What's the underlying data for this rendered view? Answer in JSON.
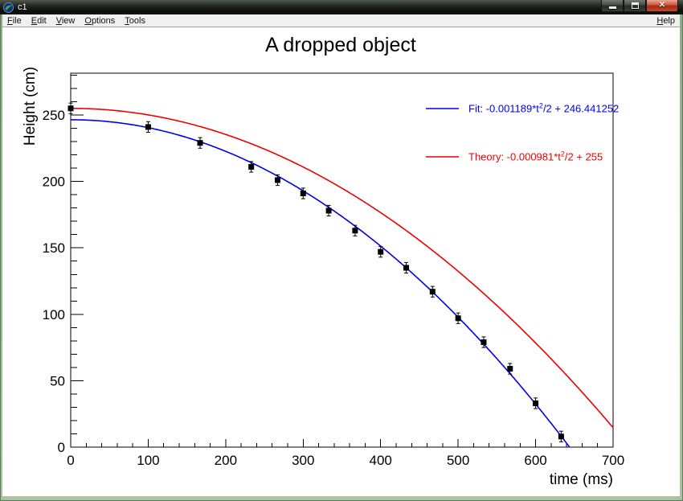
{
  "window": {
    "title": "c1",
    "buttons": {
      "minimize": "minimize",
      "maximize": "maximize",
      "close": "close"
    }
  },
  "menubar": {
    "items": [
      {
        "accel": "F",
        "rest": "ile"
      },
      {
        "accel": "E",
        "rest": "dit"
      },
      {
        "accel": "V",
        "rest": "iew"
      },
      {
        "accel": "O",
        "rest": "ptions"
      },
      {
        "accel": "T",
        "rest": "ools"
      }
    ],
    "help": {
      "accel": "H",
      "rest": "elp"
    }
  },
  "chart_data": {
    "type": "scatter",
    "title": "A dropped object",
    "xlabel": "time (ms)",
    "ylabel": "Height (cm)",
    "xlim": [
      0,
      700
    ],
    "ylim": [
      0,
      281.5
    ],
    "x_major_step": 100,
    "x_minor_step": 20,
    "y_major_step": 50,
    "y_minor_step": 10,
    "y_label_max": 250,
    "grid": false,
    "points": {
      "t": [
        0,
        100,
        167,
        233,
        267,
        300,
        333,
        367,
        400,
        433,
        467,
        500,
        533,
        567,
        600,
        633
      ],
      "h": [
        255,
        241,
        229,
        211,
        201,
        191,
        178,
        163,
        147,
        135,
        117,
        97,
        79,
        59,
        33,
        8
      ],
      "err": 4,
      "color": "#000000"
    },
    "fit": {
      "label_pre": "Fit: -0.001189*t",
      "label_sup": "2",
      "label_post": "/2 + 246.441252",
      "coef": -0.001189,
      "intercept": 246.441252,
      "color": "#0000ee"
    },
    "theory": {
      "label_pre": "Theory: -0.000981*t",
      "label_sup": "2",
      "label_post": "/2 + 255",
      "coef": -0.000981,
      "intercept": 255,
      "color": "#ee0000"
    },
    "legend_position": "top-right"
  }
}
